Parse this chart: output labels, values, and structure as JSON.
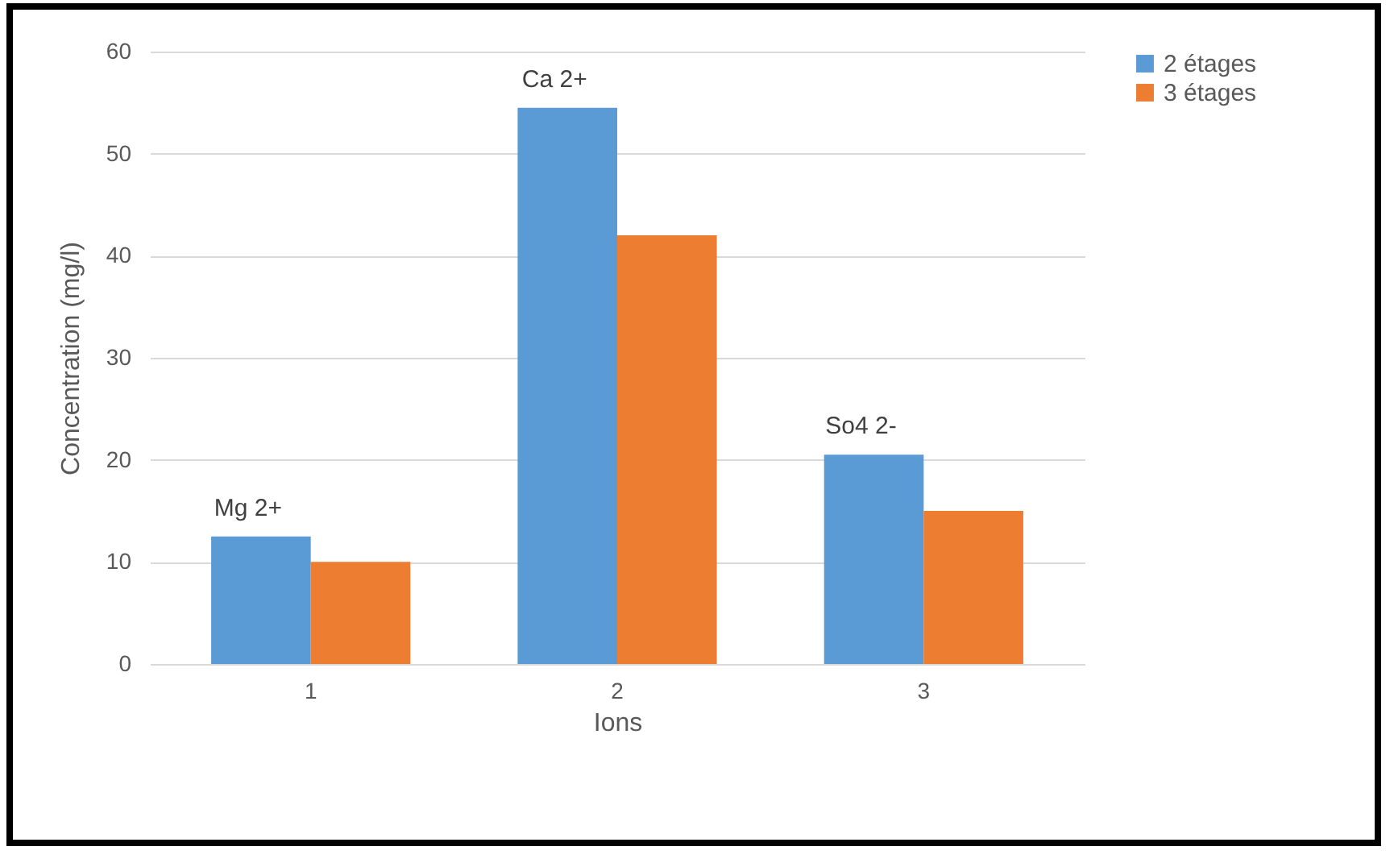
{
  "chart_data": {
    "type": "bar",
    "xlabel": "Ions",
    "ylabel": "Concentration (mg/l)",
    "categories": [
      "1",
      "2",
      "3"
    ],
    "series": [
      {
        "name": "2 étages",
        "color": "#5b9bd5",
        "values": [
          12.5,
          54.5,
          20.5
        ]
      },
      {
        "name": "3 étages",
        "color": "#ed7d31",
        "values": [
          10,
          42,
          15
        ]
      }
    ],
    "ylim": [
      0,
      60
    ],
    "yticks": [
      0,
      10,
      20,
      30,
      40,
      50,
      60
    ],
    "grid": "y",
    "legend": "right",
    "annotations": [
      {
        "text": "Mg 2+",
        "x": "1",
        "y": 12.5
      },
      {
        "text": "Ca 2+",
        "x": "2",
        "y": 54.5
      },
      {
        "text": "So4 2-",
        "x": "3",
        "y": 20.5
      }
    ]
  }
}
